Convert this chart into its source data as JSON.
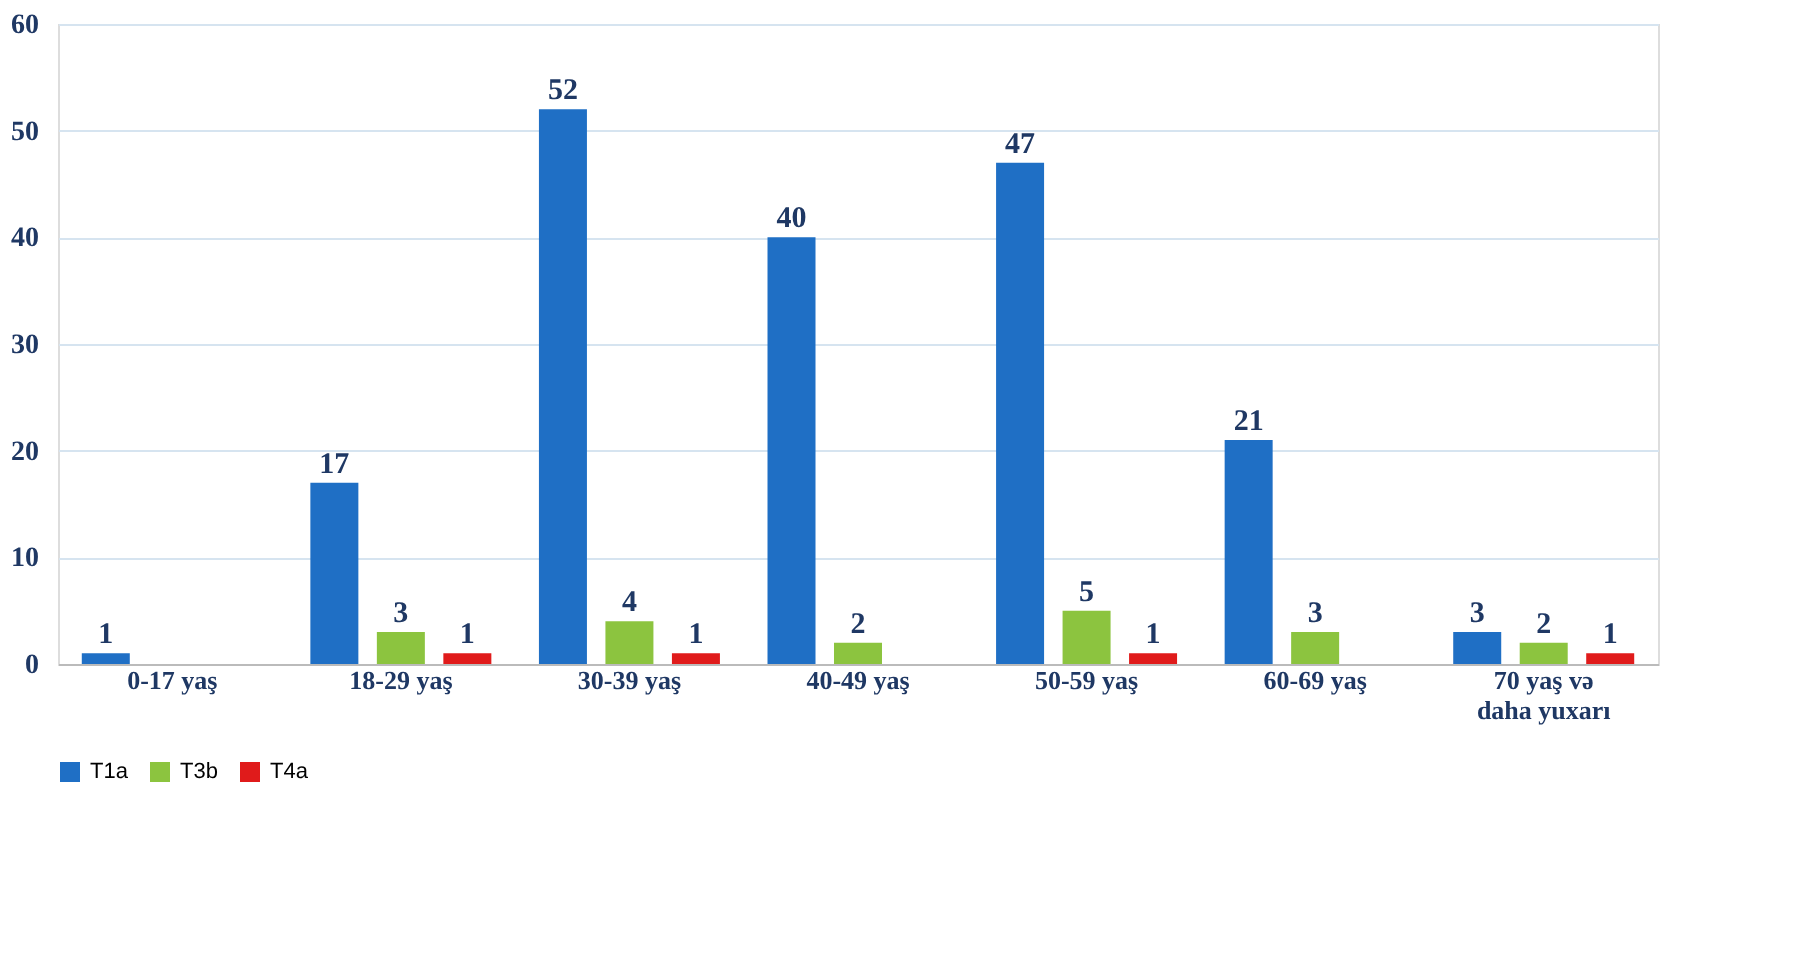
{
  "chart_data": {
    "type": "bar",
    "categories": [
      "0-17 yaş",
      "18-29 yaş",
      "30-39 yaş",
      "40-49 yaş",
      "50-59 yaş",
      "60-69 yaş",
      "70 yaş və daha yuxarı"
    ],
    "series": [
      {
        "name": "T1a",
        "color": "#1f6fc5",
        "values": [
          1,
          17,
          52,
          40,
          47,
          21,
          3
        ]
      },
      {
        "name": "T3b",
        "color": "#8cc43f",
        "values": [
          null,
          3,
          4,
          2,
          5,
          3,
          2
        ]
      },
      {
        "name": "T4a",
        "color": "#e01b1b",
        "values": [
          null,
          1,
          1,
          null,
          1,
          null,
          1
        ]
      }
    ],
    "ylim": [
      0,
      60
    ],
    "yticks": [
      0,
      10,
      20,
      30,
      40,
      50,
      60
    ],
    "grid": "y",
    "legend": "bottom",
    "data_labels": true
  }
}
